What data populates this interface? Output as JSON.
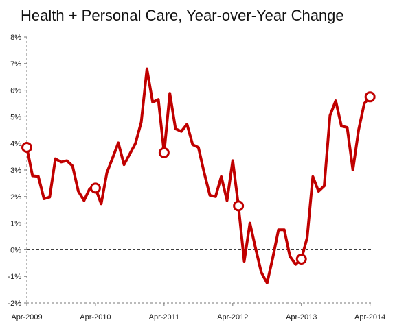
{
  "title": "Health + Personal Care, Year-over-Year Change",
  "chart_data": {
    "type": "line",
    "title": "Health + Personal Care, Year-over-Year Change",
    "xlabel": "",
    "ylabel": "",
    "ylim": [
      -2,
      8
    ],
    "y_ticks": [
      -2,
      -1,
      0,
      1,
      2,
      3,
      4,
      5,
      6,
      7,
      8
    ],
    "y_tick_labels": [
      "-2%",
      "-1%",
      "0%",
      "1%",
      "2%",
      "3%",
      "4%",
      "5%",
      "6%",
      "7%",
      "8%"
    ],
    "x_tick_labels": [
      "Apr-2009",
      "Apr-2010",
      "Apr-2011",
      "Apr-2012",
      "Apr-2013",
      "Apr-2014"
    ],
    "x_tick_months": [
      0,
      12,
      24,
      36,
      48,
      60
    ],
    "zero_line": "dashed",
    "grid": false,
    "color": "#c00000",
    "x_unit": "months since Apr-2009",
    "series": [
      {
        "name": "",
        "x": [
          0,
          1,
          2,
          3,
          4,
          5,
          6,
          7,
          8,
          9,
          10,
          11,
          12,
          13,
          14,
          15,
          16,
          17,
          18,
          19,
          20,
          21,
          22,
          23,
          24,
          25,
          26,
          27,
          28,
          29,
          30,
          31,
          32,
          33,
          34,
          35,
          36,
          37,
          38,
          39,
          40,
          41,
          42,
          43,
          44,
          45,
          46,
          47,
          48,
          49,
          50,
          51,
          52,
          53,
          54,
          55,
          56,
          57,
          58,
          59,
          60
        ],
        "values": [
          3.85,
          2.78,
          2.76,
          1.92,
          1.98,
          3.42,
          3.3,
          3.35,
          3.15,
          2.2,
          1.85,
          2.3,
          2.32,
          1.73,
          2.9,
          3.45,
          4.02,
          3.2,
          3.6,
          4.0,
          4.8,
          6.8,
          5.55,
          5.65,
          3.65,
          5.88,
          4.55,
          4.45,
          4.72,
          3.95,
          3.85,
          2.9,
          2.05,
          2.0,
          2.75,
          1.85,
          3.35,
          1.65,
          -0.43,
          1.0,
          0.05,
          -0.85,
          -1.25,
          -0.3,
          0.75,
          0.75,
          -0.25,
          -0.55,
          -0.35,
          0.45,
          2.75,
          2.2,
          2.4,
          5.05,
          5.6,
          4.65,
          4.6,
          3.0,
          4.5,
          5.5,
          5.75
        ]
      }
    ],
    "markers": [
      {
        "x": 0,
        "y": 3.85
      },
      {
        "x": 12,
        "y": 2.32
      },
      {
        "x": 24,
        "y": 3.65
      },
      {
        "x": 37,
        "y": 1.65
      },
      {
        "x": 48,
        "y": -0.35
      },
      {
        "x": 60,
        "y": 5.75
      }
    ]
  }
}
